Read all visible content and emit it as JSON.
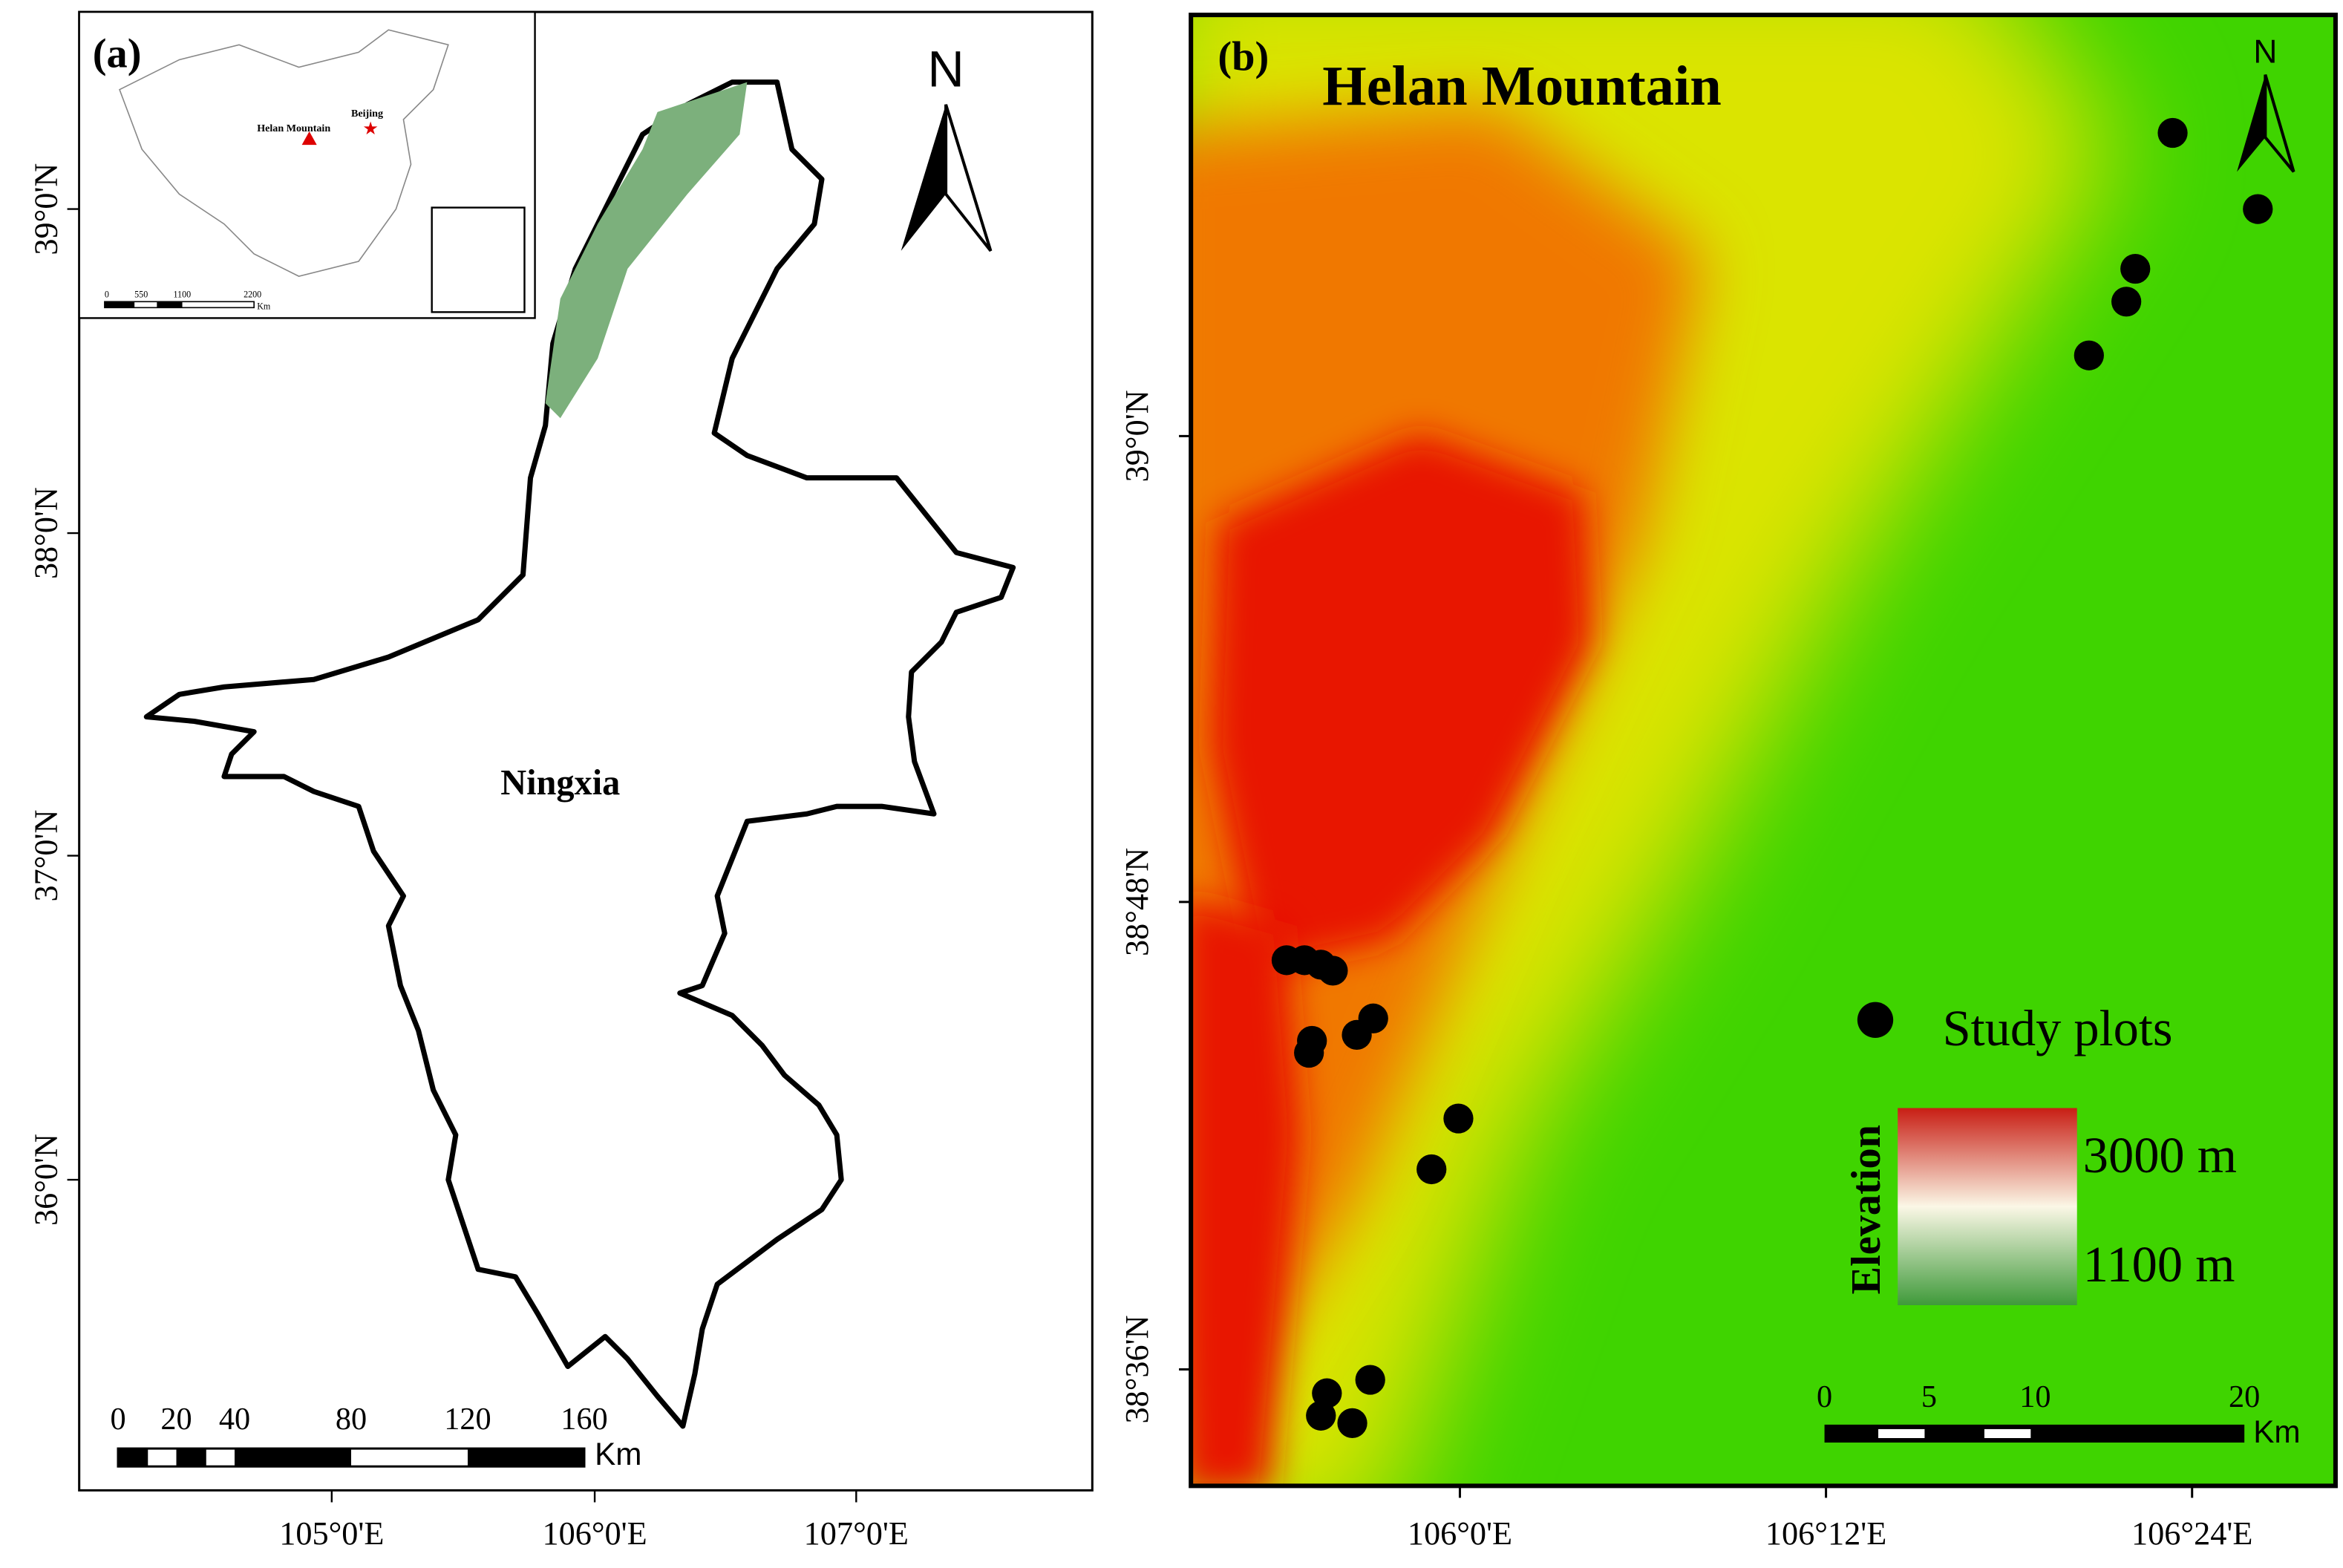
{
  "panel_a": {
    "label": "(a)",
    "inset": {
      "helan_label": "Helan Mountain",
      "beijing_label": "Beijing",
      "scale_labels": [
        "0",
        "550",
        "1100",
        "2200"
      ],
      "scale_unit": "Km"
    },
    "north": "N",
    "lat_labels": [
      "39°0'N",
      "38°0'N",
      "37°0'N",
      "36°0'N"
    ],
    "lon_labels": [
      "105°0'E",
      "106°0'E",
      "107°0'E"
    ],
    "region_label": "Ningxia",
    "scale_labels": [
      "0",
      "20",
      "40",
      "80",
      "120",
      "160"
    ],
    "scale_unit": "Km"
  },
  "panel_b": {
    "label": "(b)",
    "title": "Helan Mountain",
    "north": "N",
    "lat_labels": [
      "39°0'N",
      "38°48'N",
      "38°36'N"
    ],
    "lon_labels": [
      "106°0'E",
      "106°12'E",
      "106°24'E"
    ],
    "legend": {
      "plots": "Study plots",
      "elevation_title": "Elevation",
      "high": "3000 m",
      "low": "1100 m"
    },
    "scale_labels": [
      "0",
      "5",
      "10",
      "20"
    ],
    "scale_unit": "Km"
  }
}
